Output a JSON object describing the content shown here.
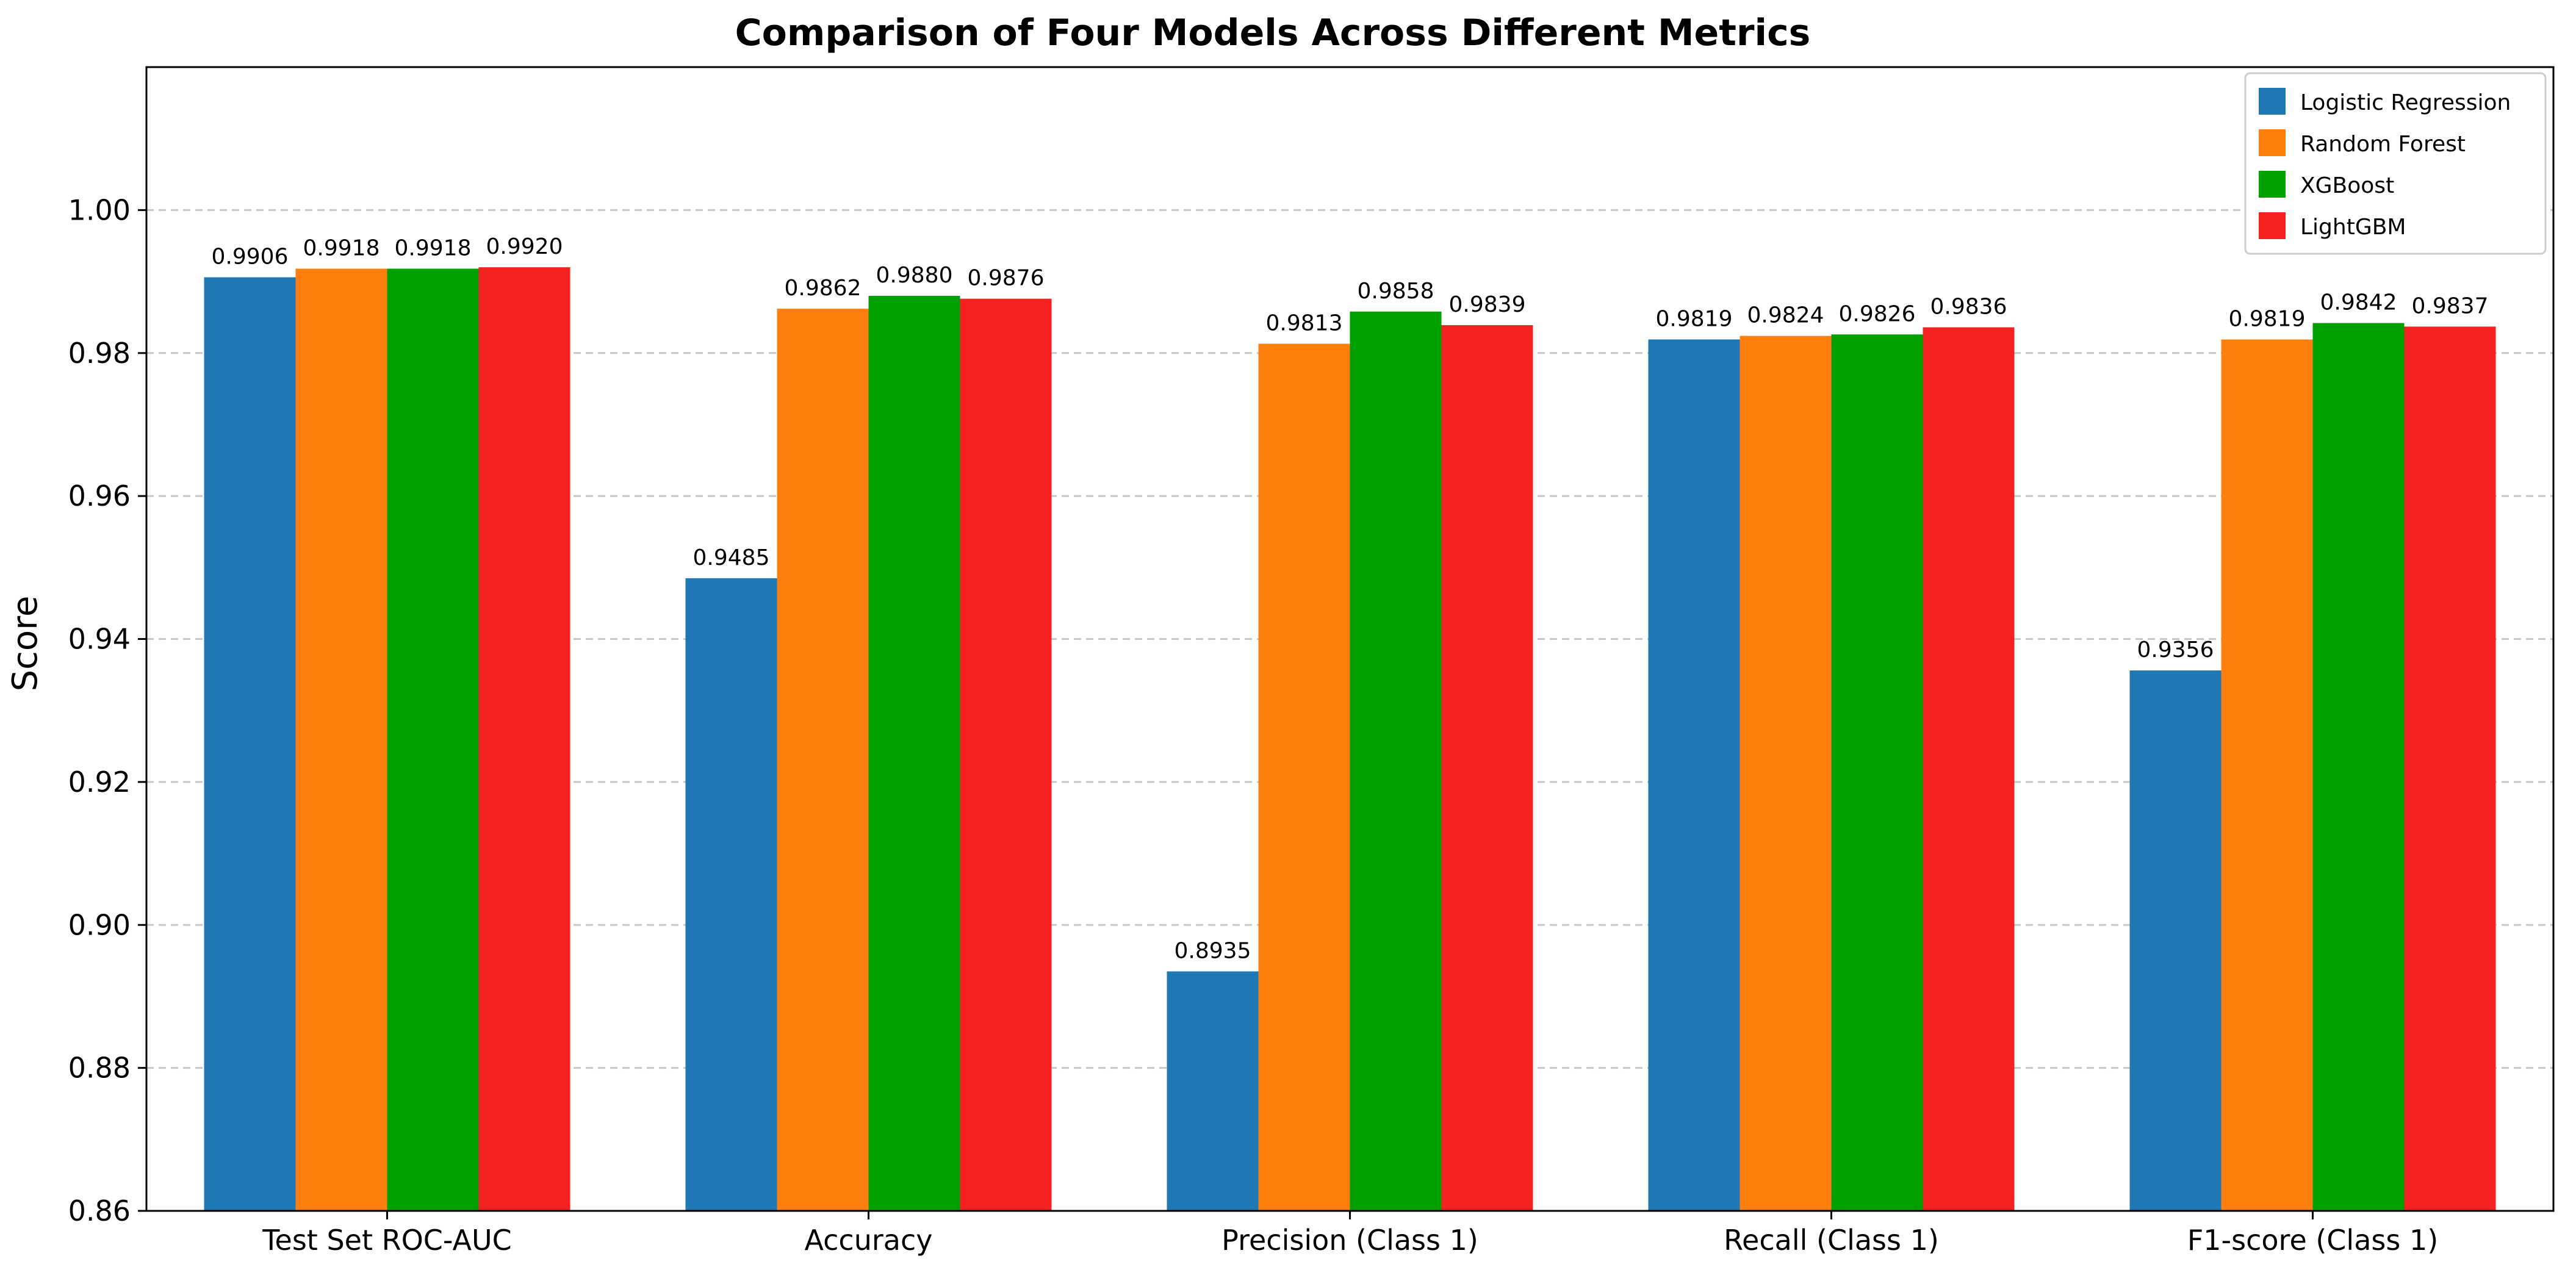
{
  "chart_data": {
    "type": "bar",
    "title": "Comparison of Four Models Across Different Metrics",
    "xlabel": "",
    "ylabel": "Score",
    "ylim": [
      0.86,
      1.02
    ],
    "yticks": [
      "0.86",
      "0.88",
      "0.90",
      "0.92",
      "0.94",
      "0.96",
      "0.98",
      "1.00"
    ],
    "grid": "y-dashed",
    "legend_position": "top-right",
    "categories": [
      "Test Set ROC-AUC",
      "Accuracy",
      "Precision (Class 1)",
      "Recall (Class 1)",
      "F1-score (Class 1)"
    ],
    "series": [
      {
        "name": "Logistic Regression",
        "color": "#1f77b4",
        "values": [
          0.9906,
          0.9485,
          0.8935,
          0.9819,
          0.9356
        ],
        "labels": [
          "0.9906",
          "0.9485",
          "0.8935",
          "0.9819",
          "0.9356"
        ]
      },
      {
        "name": "Random Forest",
        "color": "#ff7f0e",
        "values": [
          0.9918,
          0.9862,
          0.9813,
          0.9824,
          0.9819
        ],
        "labels": [
          "0.9918",
          "0.9862",
          "0.9813",
          "0.9824",
          "0.9819"
        ]
      },
      {
        "name": "XGBoost",
        "color": "#00a000",
        "values": [
          0.9918,
          0.988,
          0.9858,
          0.9826,
          0.9842
        ],
        "labels": [
          "0.9918",
          "0.9880",
          "0.9858",
          "0.9826",
          "0.9842"
        ]
      },
      {
        "name": "LightGBM",
        "color": "#f52020",
        "values": [
          0.992,
          0.9876,
          0.9839,
          0.9836,
          0.9837
        ],
        "labels": [
          "0.9920",
          "0.9876",
          "0.9839",
          "0.9836",
          "0.9837"
        ]
      }
    ]
  }
}
